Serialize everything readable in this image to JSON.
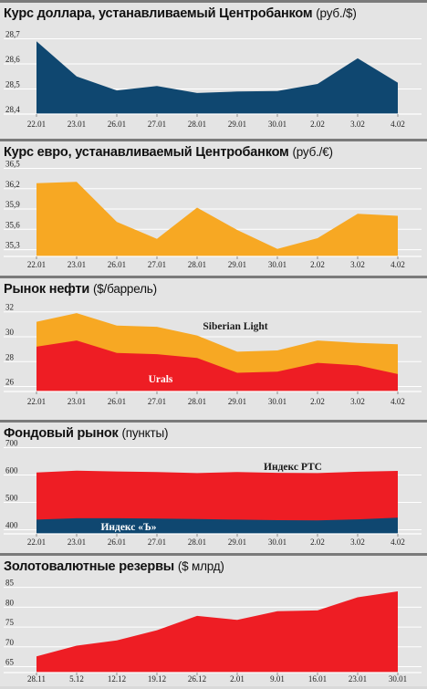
{
  "colors": {
    "navy": "#0f4770",
    "orange": "#f7a823",
    "red": "#ee1d24",
    "grid": "#ffffff",
    "panel_bg": "#e4e4e4"
  },
  "chart_data": [
    {
      "type": "area",
      "title": "Курс доллара, устанавливаемый Центробанком",
      "unit": "(руб./$)",
      "categories": [
        "22.01",
        "23.01",
        "26.01",
        "27.01",
        "28.01",
        "29.01",
        "30.01",
        "2.02",
        "3.02",
        "4.02"
      ],
      "yticks": [
        "28,7",
        "28,6",
        "28,5",
        "28,4"
      ],
      "ylim": [
        28.4,
        28.72
      ],
      "series": [
        {
          "values": [
            28.69,
            28.55,
            28.494,
            28.512,
            28.484,
            28.49,
            28.492,
            28.52,
            28.622,
            28.525
          ],
          "color": "#0f4770"
        }
      ]
    },
    {
      "type": "area",
      "title": "Курс евро, устанавливаемый Центробанком",
      "unit": "(руб./€)",
      "categories": [
        "22.01",
        "23.01",
        "26.01",
        "27.01",
        "28.01",
        "29.01",
        "30.01",
        "2.02",
        "3.02",
        "4.02"
      ],
      "yticks": [
        "36,5",
        "36,2",
        "35,9",
        "35,6",
        "35,3"
      ],
      "ylim": [
        35.2,
        36.52
      ],
      "series": [
        {
          "values": [
            36.28,
            36.3,
            35.71,
            35.46,
            35.92,
            35.59,
            35.31,
            35.47,
            35.83,
            35.8
          ],
          "color": "#f7a823"
        }
      ]
    },
    {
      "type": "area",
      "title": "Рынок нефти",
      "unit": "($/баррель)",
      "categories": [
        "22.01",
        "23.01",
        "26.01",
        "27.01",
        "28.01",
        "29.01",
        "30.01",
        "2.02",
        "3.02",
        "4.02"
      ],
      "yticks": [
        "32",
        "30",
        "28",
        "26"
      ],
      "ylim": [
        25.6,
        32.2
      ],
      "series": [
        {
          "name": "Siberian Light",
          "values": [
            31.2,
            31.9,
            30.9,
            30.8,
            30.1,
            28.8,
            28.9,
            29.7,
            29.5,
            29.4
          ],
          "color": "#f7a823"
        },
        {
          "name": "Urals",
          "values": [
            29.2,
            29.7,
            28.7,
            28.6,
            28.3,
            27.1,
            27.2,
            27.9,
            27.7,
            27.0
          ],
          "color": "#ee1d24"
        }
      ]
    },
    {
      "type": "area",
      "title": "Фондовый рынок",
      "unit": "(пункты)",
      "categories": [
        "22.01",
        "23.01",
        "26.01",
        "27.01",
        "28.01",
        "29.01",
        "30.01",
        "2.02",
        "3.02",
        "4.02"
      ],
      "yticks": [
        "700",
        "600",
        "500",
        "400"
      ],
      "ylim": [
        385,
        705
      ],
      "series": [
        {
          "name": "Индекс РТС",
          "values": [
            609,
            616,
            613,
            611,
            607,
            611,
            608,
            607,
            612,
            615
          ],
          "color": "#ee1d24"
        },
        {
          "name": "Индекс «Ъ»",
          "values": [
            437,
            442,
            442,
            441,
            439,
            437,
            435,
            434,
            438,
            444
          ],
          "color": "#0f4770"
        }
      ]
    },
    {
      "type": "area",
      "title": "Золотовалютные резервы",
      "unit": "($ млрд)",
      "categories": [
        "28.11",
        "5.12",
        "12.12",
        "19.12",
        "26.12",
        "2.01",
        "9.01",
        "16.01",
        "23.01",
        "30.01"
      ],
      "yticks": [
        "85",
        "80",
        "75",
        "70",
        "65"
      ],
      "ylim": [
        63.5,
        87
      ],
      "series": [
        {
          "values": [
            67.6,
            70.3,
            71.6,
            74.2,
            77.8,
            76.8,
            79.0,
            79.2,
            82.5,
            84.0
          ],
          "color": "#ee1d24"
        }
      ]
    }
  ]
}
